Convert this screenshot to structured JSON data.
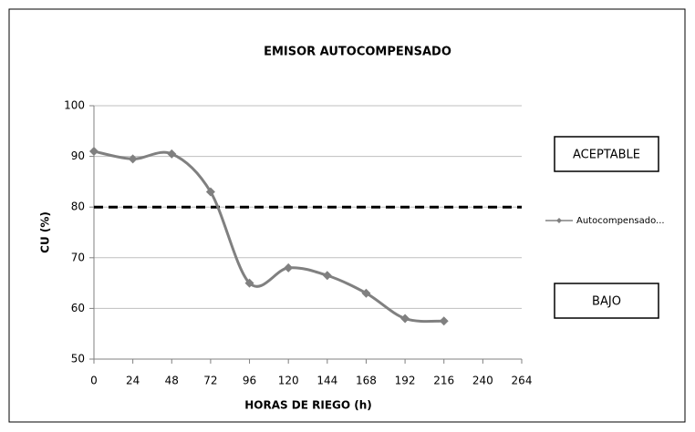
{
  "chart_data": {
    "type": "line",
    "title": "EMISOR AUTOCOMPENSADO",
    "x_label": "HORAS DE RIEGO (h)",
    "y_label": "CU (%)",
    "x": [
      0,
      24,
      48,
      72,
      96,
      120,
      144,
      168,
      192,
      216
    ],
    "series": [
      {
        "name": "Autocompensado...",
        "color": "#808080",
        "values": [
          91,
          89.5,
          90.5,
          83,
          65,
          68,
          66.5,
          63,
          58,
          57.5
        ]
      }
    ],
    "xlim": [
      0,
      264
    ],
    "xticks": [
      0,
      24,
      48,
      72,
      96,
      120,
      144,
      168,
      192,
      216,
      240,
      264
    ],
    "ylim": [
      50,
      100
    ],
    "yticks": [
      50,
      60,
      70,
      80,
      90,
      100
    ],
    "reference_line": 80,
    "annotations": [
      "ACEPTABLE",
      "BAJO"
    ],
    "grid": true,
    "legend": "right"
  }
}
